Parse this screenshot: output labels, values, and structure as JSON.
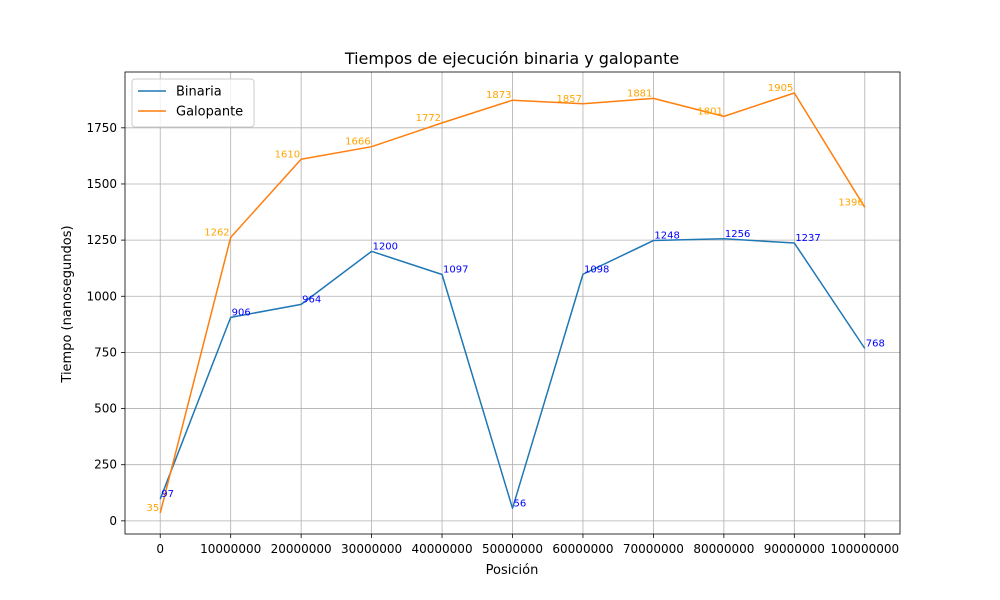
{
  "chart_data": {
    "type": "line",
    "title": "Tiempos de ejecución binaria y galopante",
    "xlabel": "Posición",
    "ylabel": "Tiempo (nanosegundos)",
    "x": [
      0,
      10000000,
      20000000,
      30000000,
      40000000,
      50000000,
      60000000,
      70000000,
      80000000,
      90000000,
      100000000
    ],
    "xticks": [
      0,
      10000000,
      20000000,
      30000000,
      40000000,
      50000000,
      60000000,
      70000000,
      80000000,
      90000000,
      100000000
    ],
    "xtick_labels": [
      "0",
      "10000000",
      "20000000",
      "30000000",
      "40000000",
      "50000000",
      "60000000",
      "70000000",
      "80000000",
      "90000000",
      "100000000"
    ],
    "yticks": [
      0,
      250,
      500,
      750,
      1000,
      1250,
      1500,
      1750
    ],
    "ytick_labels": [
      "0",
      "250",
      "500",
      "750",
      "1000",
      "1250",
      "1500",
      "1750"
    ],
    "xlim": [
      -5000000,
      105000000
    ],
    "ylim": [
      -58.5,
      1998.5
    ],
    "grid": true,
    "legend_position": "top-left",
    "series": [
      {
        "name": "Binaria",
        "color": "#1f77b4",
        "label_color": "#0000ff",
        "values": [
          97,
          906,
          964,
          1200,
          1097,
          56,
          1098,
          1248,
          1256,
          1237,
          768
        ],
        "labels": [
          "97",
          "906",
          "964",
          "1200",
          "1097",
          "56",
          "1098",
          "1248",
          "1256",
          "1237",
          "768"
        ]
      },
      {
        "name": "Galopante",
        "color": "#ff7f0e",
        "label_color": "#ffa500",
        "values": [
          35,
          1262,
          1610,
          1666,
          1772,
          1873,
          1857,
          1881,
          1801,
          1905,
          1396
        ],
        "labels": [
          "35",
          "1262",
          "1610",
          "1666",
          "1772",
          "1873",
          "1857",
          "1881",
          "1801",
          "1905",
          "1396"
        ]
      }
    ]
  }
}
